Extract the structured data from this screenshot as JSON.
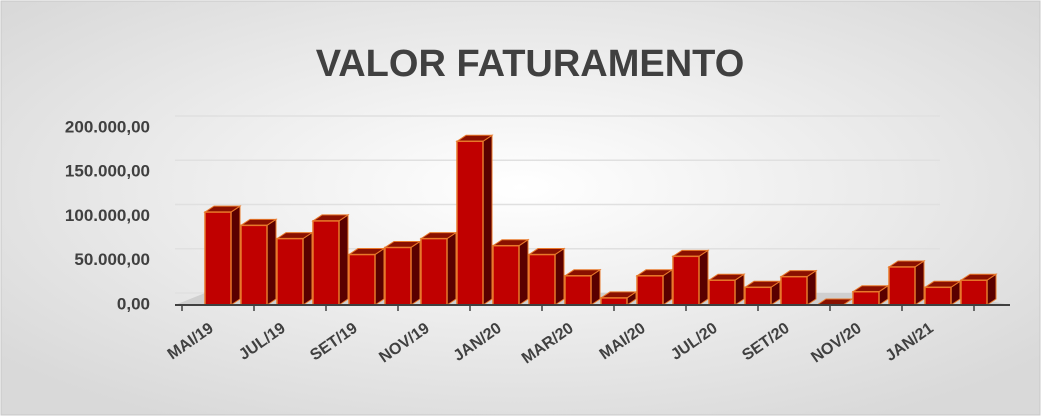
{
  "chart_data": {
    "type": "bar",
    "title": "VALOR FATURAMENTO",
    "categories": [
      "MAI/19",
      null,
      "JUL/19",
      null,
      "SET/19",
      null,
      "NOV/19",
      null,
      "JAN/20",
      null,
      "MAR/20",
      null,
      "MAI/20",
      null,
      "JUL/20",
      null,
      "SET/20",
      null,
      "NOV/20",
      null,
      "JAN/21",
      null
    ],
    "values": [
      105000,
      90000,
      75000,
      95000,
      57000,
      65000,
      75000,
      185000,
      67000,
      57000,
      33000,
      8000,
      33000,
      55000,
      28000,
      20000,
      32000,
      0,
      15000,
      43000,
      20000,
      28000
    ],
    "color": "#c00000",
    "ylim": [
      0,
      200000
    ],
    "yticks": [
      {
        "value": 0,
        "label": "0,00"
      },
      {
        "value": 50000,
        "label": "50.000,00"
      },
      {
        "value": 100000,
        "label": "100.000,00"
      },
      {
        "value": 150000,
        "label": "150.000,00"
      },
      {
        "value": 200000,
        "label": "200.000,00"
      }
    ],
    "grid": true
  }
}
